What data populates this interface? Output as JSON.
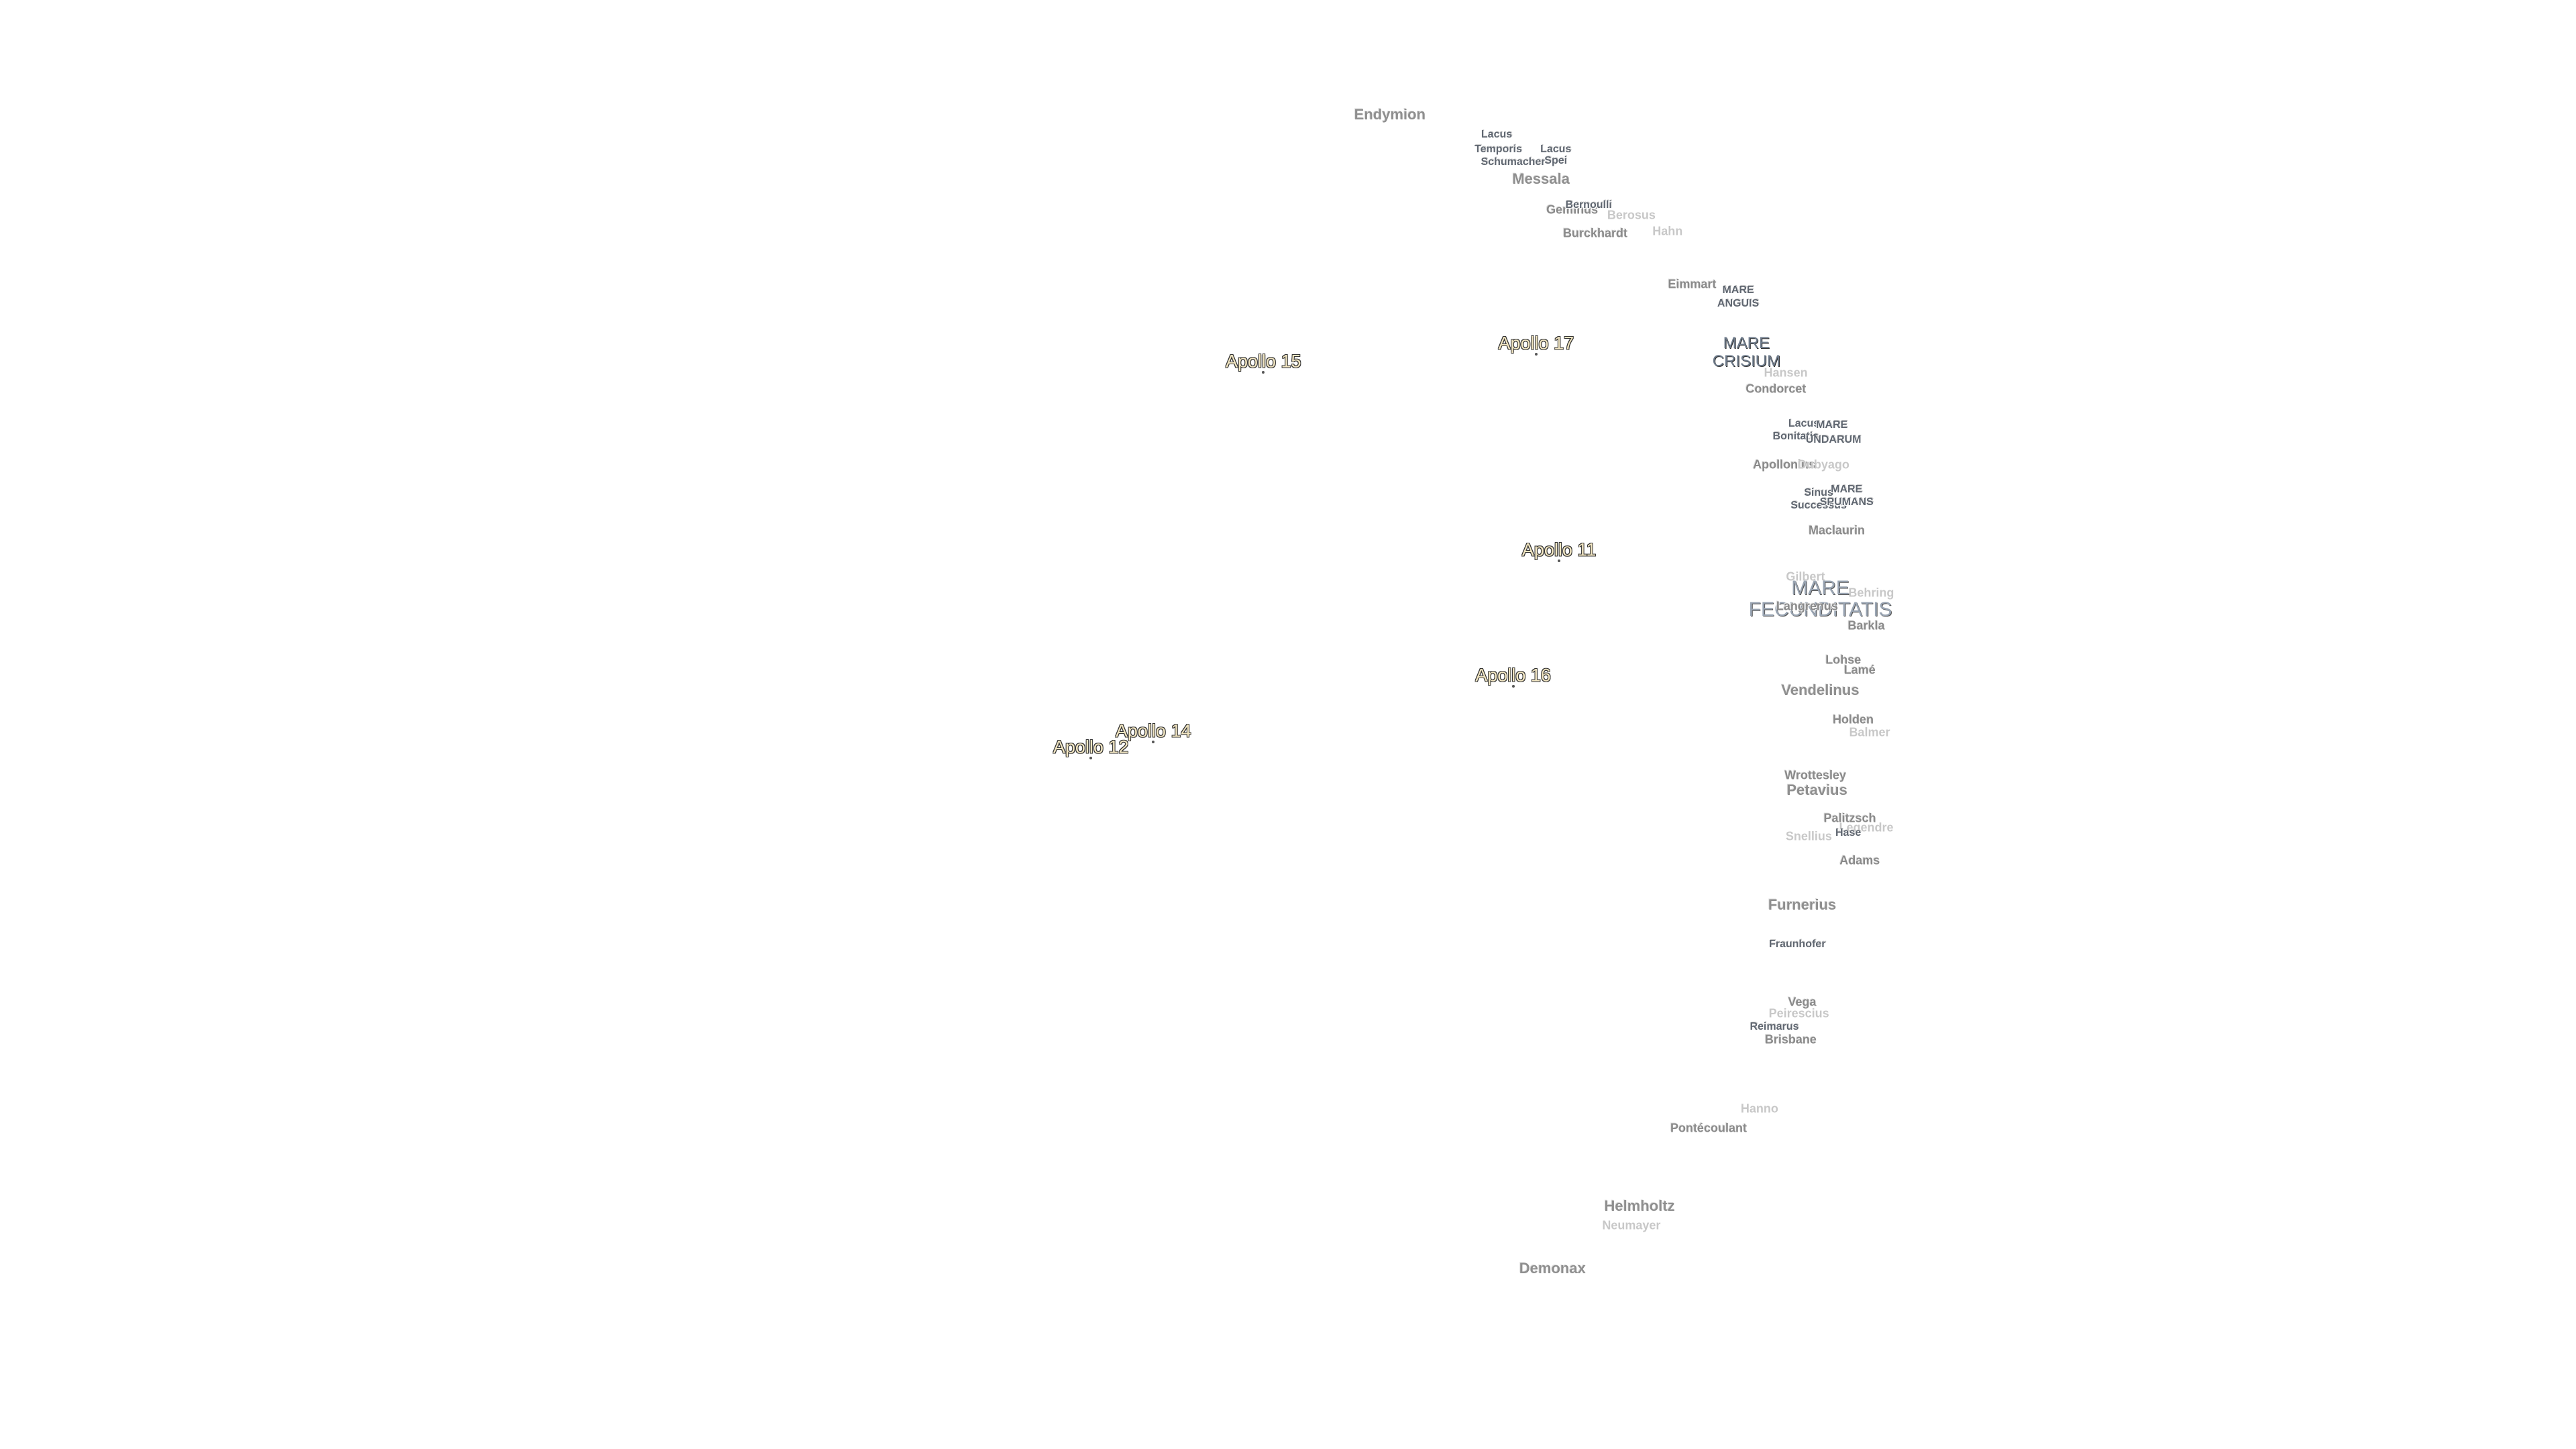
{
  "labels": [
    "Endymion",
    "Lacus",
    "Temporis",
    "Schumacher",
    "Lacus",
    "Spei",
    "Messala",
    "Geminus",
    "Bernoulli",
    "Berosus",
    "Hahn",
    "Burckhardt",
    "Eimmart",
    "MARE",
    "ANGUIS",
    "MARE",
    "CRISIUM",
    "Hansen",
    "Condorcet",
    "Lacus",
    "Bonitatis",
    "MARE",
    "UNDARUM",
    "Apollonius",
    "Dubyago",
    "Sinus",
    "Successus",
    "MARE",
    "SPUMANS",
    "Maclaurin",
    "Gilbert",
    "MARE",
    "FECUNDITATIS",
    "Langrenus",
    "Behring",
    "Barkla",
    "Lohse",
    "Lamé",
    "Vendelinus",
    "Holden",
    "Balmer",
    "Wrottesley",
    "Petavius",
    "Palitzsch",
    "Legendre",
    "Hase",
    "Snellius",
    "Adams",
    "Furnerius",
    "Fraunhofer",
    "Vega",
    "Peirescius",
    "Reimarus",
    "Brisbane",
    "Hanno",
    "Pontécoulant",
    "Helmholtz",
    "Neumayer",
    "Demonax"
  ],
  "apollo_sites": [
    "Apollo 15",
    "Apollo 17",
    "Apollo 11",
    "Apollo 16",
    "Apollo 14",
    "Apollo 12"
  ]
}
